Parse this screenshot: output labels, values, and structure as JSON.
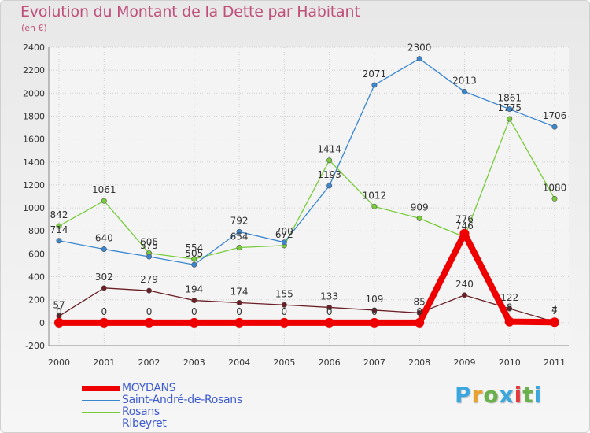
{
  "title": "Evolution du Montant de la Dette par Habitant",
  "subtitle": "(en €)",
  "logo_text": "Proxiti",
  "colors": {
    "background": "#f2f2f2",
    "grid": "#cfcfcf",
    "title": "#c0507a",
    "legend_text": "#3d5bd1",
    "logo": [
      "#3aa7df",
      "#e8a32c",
      "#6ab04c",
      "#3aa7df",
      "#e33b3b",
      "#6ab04c",
      "#3aa7df"
    ]
  },
  "chart_data": {
    "type": "line",
    "title": "Evolution du Montant de la Dette par Habitant",
    "subtitle": "(en €)",
    "x": [
      "2000",
      "2001",
      "2002",
      "2003",
      "2004",
      "2005",
      "2006",
      "2007",
      "2008",
      "2009",
      "2010",
      "2011"
    ],
    "ylim": [
      -200,
      2400
    ],
    "yticks": [
      -200,
      0,
      200,
      400,
      600,
      800,
      1000,
      1200,
      1400,
      1600,
      1800,
      2000,
      2200,
      2400
    ],
    "grid": true,
    "legend_position": "bottom-left",
    "series": [
      {
        "name": "MOYDANS",
        "color": "#ee0000",
        "values": [
          0,
          0,
          0,
          0,
          0,
          0,
          0,
          0,
          0,
          776,
          8,
          4
        ],
        "labels": [
          "0",
          "0",
          "0",
          "0",
          "0",
          "0",
          "0",
          "0",
          "0",
          "776",
          "8",
          "4"
        ]
      },
      {
        "name": "Saint-André-de-Rosans",
        "color": "#3a87d0",
        "values": [
          714,
          640,
          575,
          505,
          792,
          700,
          1193,
          2071,
          2300,
          2013,
          1861,
          1706
        ],
        "labels": [
          "714",
          "640",
          "575",
          "505",
          "792",
          "700",
          "1193",
          "2071",
          "2300",
          "2013",
          "1861",
          "1706"
        ]
      },
      {
        "name": "Rosans",
        "color": "#77cc3a",
        "values": [
          842,
          1061,
          605,
          554,
          654,
          672,
          1414,
          1012,
          909,
          746,
          1775,
          1080
        ],
        "labels": [
          "842",
          "1061",
          "605",
          "554",
          "654",
          "672",
          "1414",
          "1012",
          "909",
          "746",
          "1775",
          "1080"
        ]
      },
      {
        "name": "Ribeyret",
        "color": "#6b1f25",
        "values": [
          57,
          302,
          279,
          194,
          174,
          155,
          133,
          109,
          85,
          240,
          122,
          7
        ],
        "labels": [
          "57",
          "302",
          "279",
          "194",
          "174",
          "155",
          "133",
          "109",
          "85",
          "240",
          "122",
          "7"
        ]
      }
    ]
  }
}
